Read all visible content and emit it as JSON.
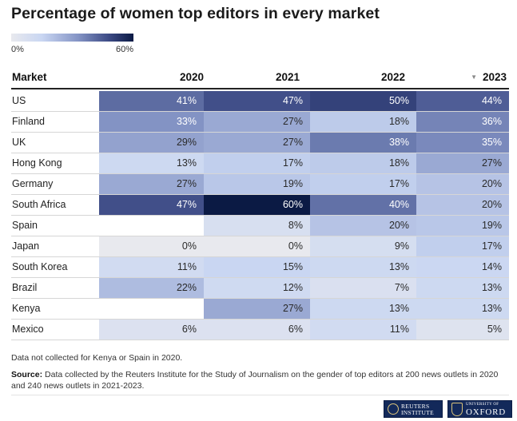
{
  "title": "Percentage of women top editors in every market",
  "legend": {
    "min_label": "0%",
    "max_label": "60%",
    "color_low": "#e8e9ee",
    "color_high": "#0b1a44"
  },
  "table": {
    "market_header": "Market",
    "year_headers": [
      "2020",
      "2021",
      "2022",
      "2023"
    ],
    "sort_indicator": "▼",
    "sorted_by": "2023"
  },
  "chart_data": {
    "type": "heatmap",
    "title": "Percentage of women top editors in every market",
    "columns": [
      "2020",
      "2021",
      "2022",
      "2023"
    ],
    "scale": [
      0,
      60
    ],
    "unit": "%",
    "rows": [
      {
        "market": "US",
        "values": [
          41,
          47,
          50,
          44
        ]
      },
      {
        "market": "Finland",
        "values": [
          33,
          27,
          18,
          36
        ]
      },
      {
        "market": "UK",
        "values": [
          29,
          27,
          38,
          35
        ]
      },
      {
        "market": "Hong Kong",
        "values": [
          13,
          17,
          18,
          27
        ]
      },
      {
        "market": "Germany",
        "values": [
          27,
          19,
          17,
          20
        ]
      },
      {
        "market": "South Africa",
        "values": [
          47,
          60,
          40,
          20
        ]
      },
      {
        "market": "Spain",
        "values": [
          null,
          8,
          20,
          19
        ]
      },
      {
        "market": "Japan",
        "values": [
          0,
          0,
          9,
          17
        ]
      },
      {
        "market": "South Korea",
        "values": [
          11,
          15,
          13,
          14
        ]
      },
      {
        "market": "Brazil",
        "values": [
          22,
          12,
          7,
          13
        ]
      },
      {
        "market": "Kenya",
        "values": [
          null,
          27,
          13,
          13
        ]
      },
      {
        "market": "Mexico",
        "values": [
          6,
          6,
          11,
          5
        ]
      }
    ]
  },
  "footer": {
    "note": "Data not collected for Kenya or Spain in 2020.",
    "source_label": "Source:",
    "source_text": "Data collected by the Reuters Institute for the Study of Journalism on the gender of top editors at 200 news outlets in 2020 and 240 news outlets in 2021-2023."
  },
  "logos": {
    "reuters_line1": "REUTERS",
    "reuters_line2": "INSTITUTE",
    "oxford_top": "UNIVERSITY OF",
    "oxford_main": "OXFORD",
    "navy": "#13295a"
  }
}
